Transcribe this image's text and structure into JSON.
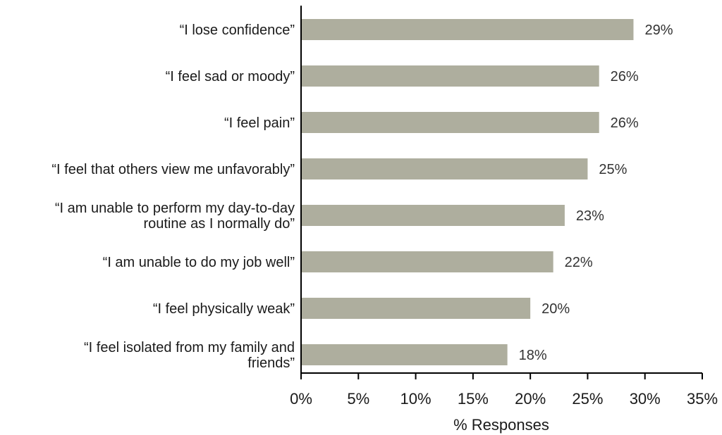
{
  "chart_data": {
    "type": "bar",
    "orientation": "horizontal",
    "categories": [
      "“I lose confidence”",
      "“I feel sad or moody”",
      "“I feel pain”",
      "“I feel that others view me unfavorably”",
      "“I am unable to perform my day-to-day routine as I normally do”",
      "“I am unable to do my job well”",
      "“I feel physically weak”",
      "“I feel isolated from my family and friends”"
    ],
    "category_lines": [
      [
        "“I lose confidence”"
      ],
      [
        "“I feel sad or moody”"
      ],
      [
        "“I feel pain”"
      ],
      [
        "“I feel that others view me unfavorably”"
      ],
      [
        "“I am unable to perform my day-to-day",
        "routine as I normally do”"
      ],
      [
        "“I am unable to do my job well”"
      ],
      [
        "“I feel physically weak”"
      ],
      [
        "“I feel isolated from my family and",
        "friends”"
      ]
    ],
    "values": [
      29,
      26,
      26,
      25,
      23,
      22,
      20,
      18
    ],
    "value_labels": [
      "29%",
      "26%",
      "26%",
      "25%",
      "23%",
      "22%",
      "20%",
      "18%"
    ],
    "xlabel": "% Responses",
    "xlim": [
      0,
      35
    ],
    "xticks": [
      0,
      5,
      10,
      15,
      20,
      25,
      30,
      35
    ],
    "xtick_labels": [
      "0%",
      "5%",
      "10%",
      "15%",
      "20%",
      "25%",
      "30%",
      "35%"
    ],
    "grid": false,
    "legend": "none",
    "bar_color": "#aeae9e",
    "axis_color": "#000000"
  }
}
